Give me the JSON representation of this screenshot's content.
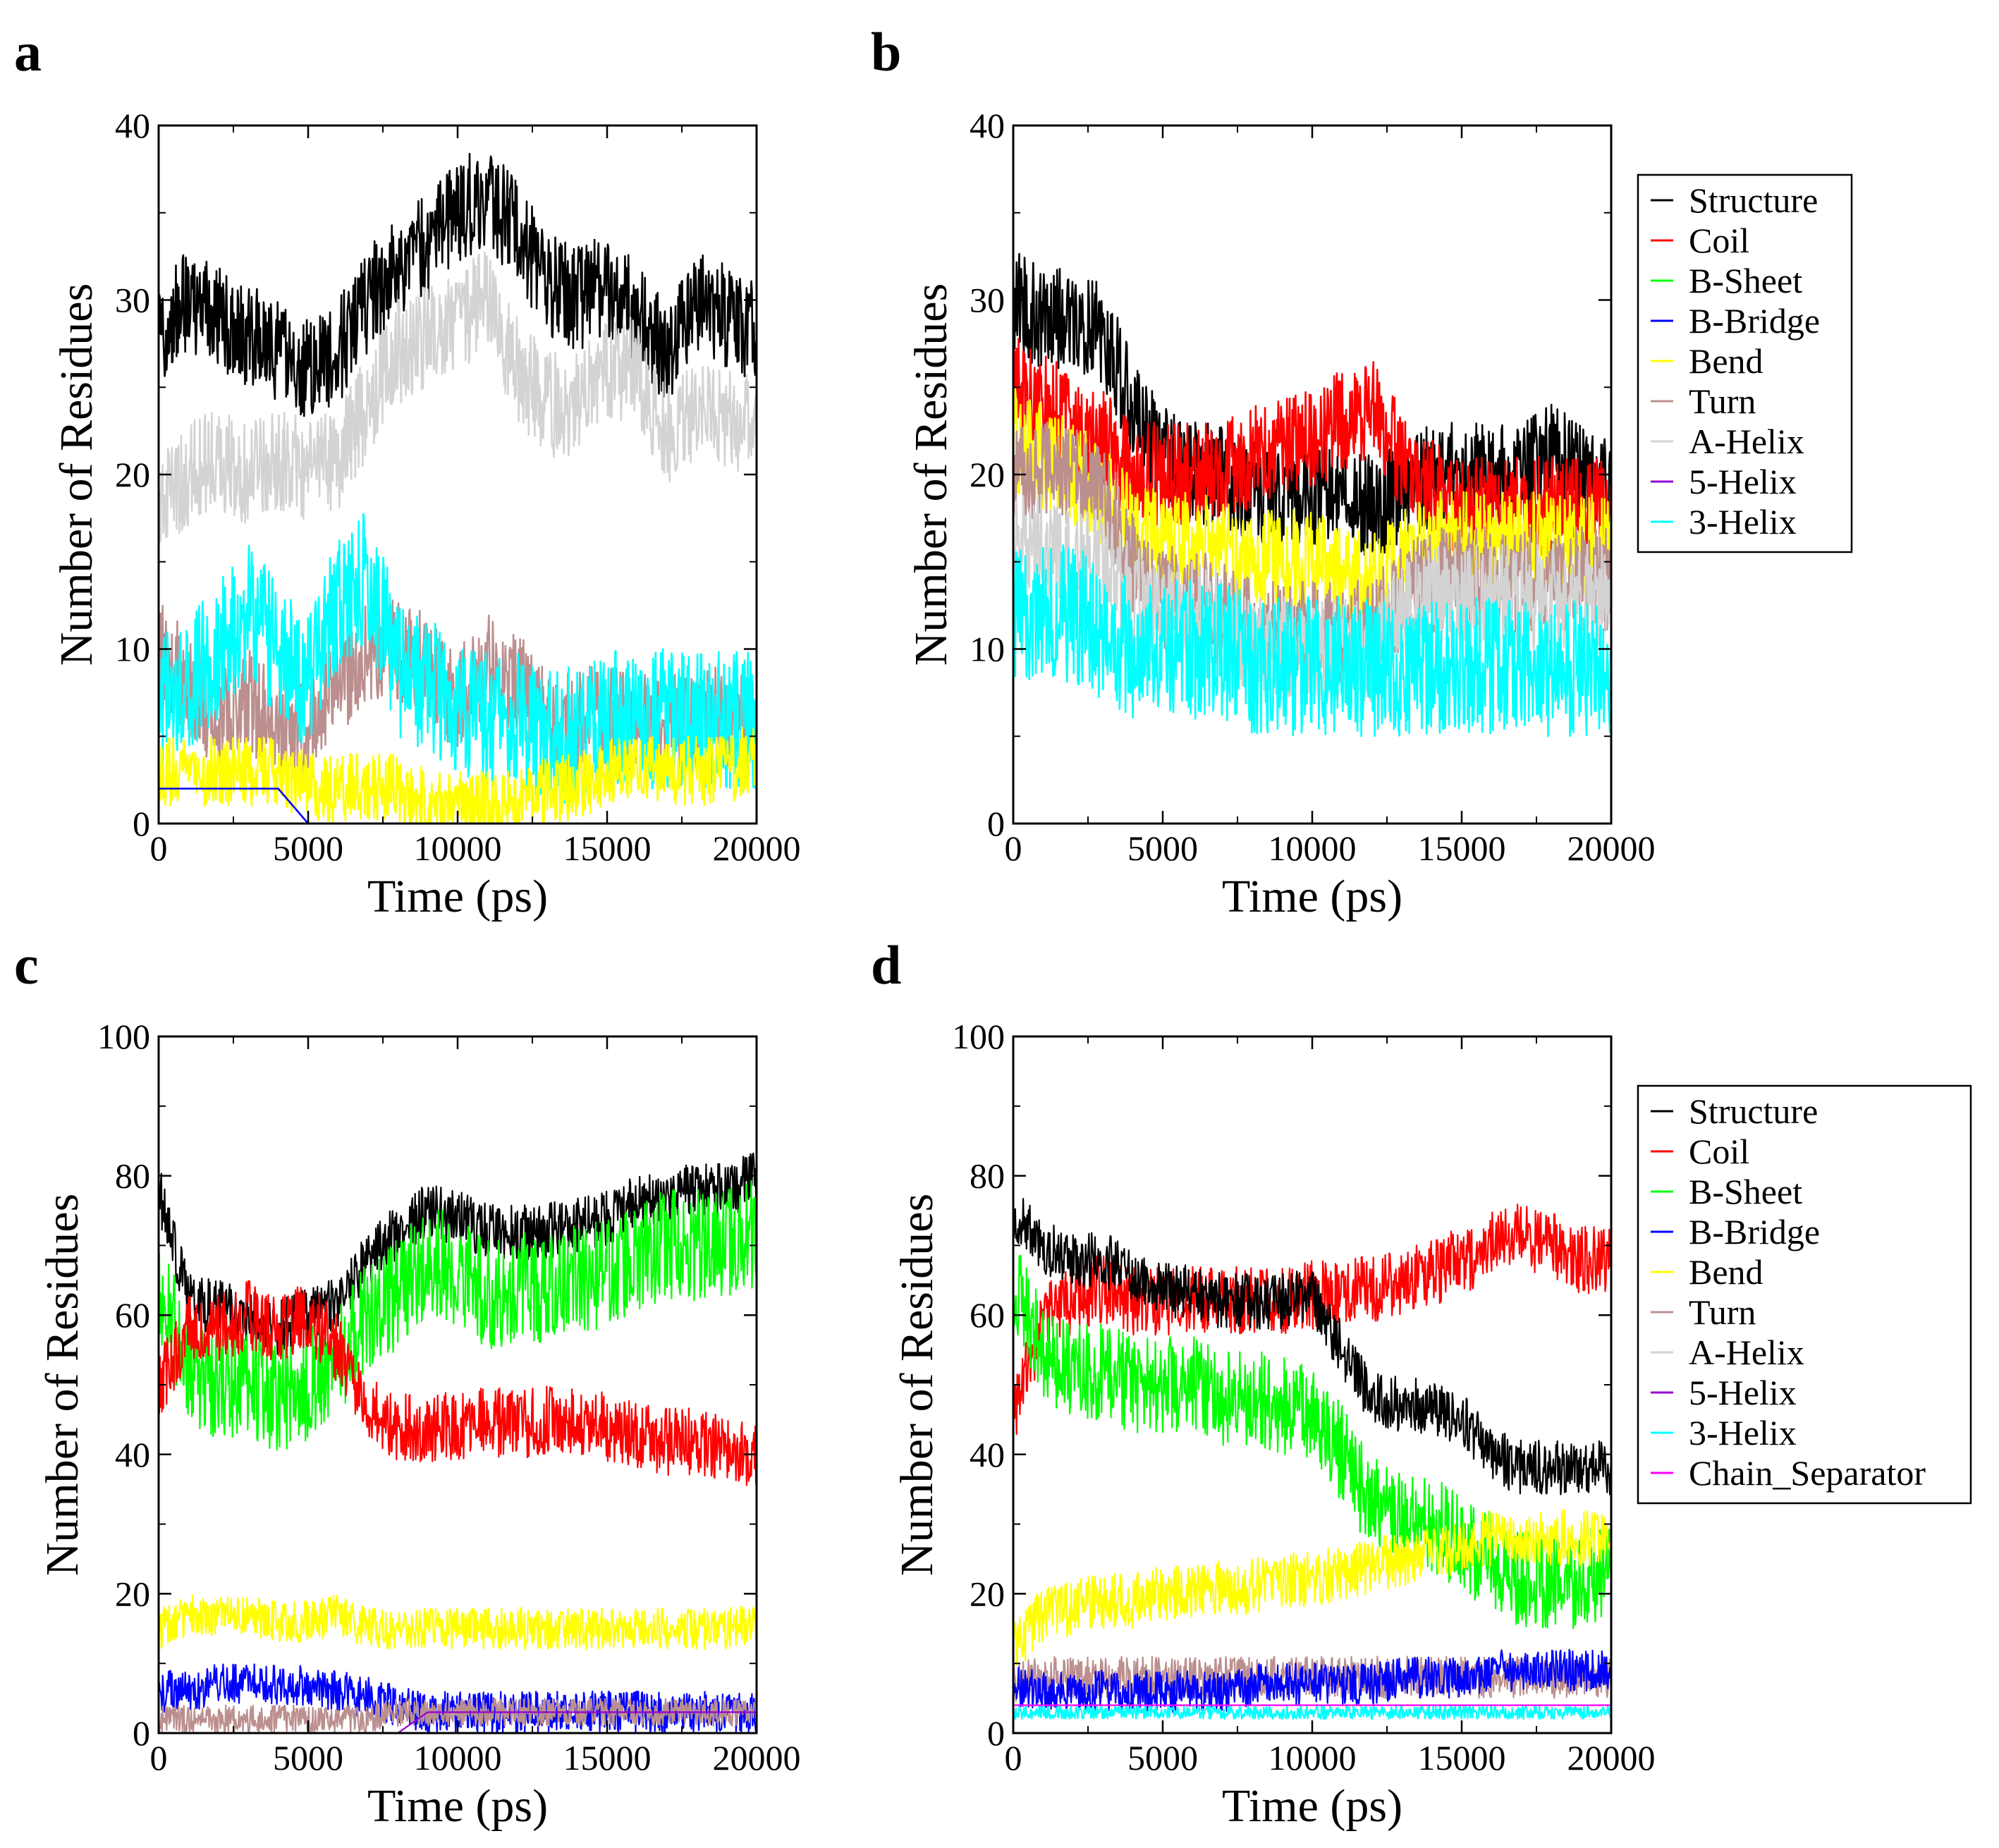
{
  "figure": {
    "panels": [
      {
        "letter": "a"
      },
      {
        "letter": "b"
      },
      {
        "letter": "c"
      },
      {
        "letter": "d"
      }
    ]
  },
  "chart_data": [
    {
      "type": "area",
      "panel": "a",
      "xlabel": "Time (ps)",
      "ylabel": "Number of Residues",
      "xlim": [
        0,
        20000
      ],
      "ylim": [
        0,
        40
      ],
      "xticks": [
        0,
        5000,
        10000,
        15000,
        20000
      ],
      "yticks": [
        0,
        10,
        20,
        30,
        40
      ],
      "x": [
        0,
        1000,
        2000,
        3000,
        4000,
        5000,
        6000,
        7000,
        8000,
        9000,
        10000,
        11000,
        12000,
        13000,
        14000,
        15000,
        16000,
        17000,
        18000,
        19000,
        20000
      ],
      "series": [
        {
          "name": "Structure",
          "color": "#000000",
          "values": [
            28,
            30,
            29,
            28,
            27,
            26,
            27,
            30,
            32,
            33,
            35,
            36,
            34,
            31,
            30,
            31,
            29,
            27,
            30,
            29,
            28
          ],
          "noise": 3
        },
        {
          "name": "A-Helix",
          "color": "#d3d3d3",
          "values": [
            18,
            20,
            21,
            20,
            21,
            20,
            21,
            24,
            27,
            28,
            29,
            30,
            26,
            24,
            24,
            26,
            26,
            22,
            24,
            23,
            23
          ],
          "noise": 3
        },
        {
          "name": "Turn",
          "color": "#bc8f8f",
          "values": [
            10,
            8,
            6,
            7,
            6,
            5,
            8,
            10,
            10,
            9,
            7,
            9,
            8,
            6,
            6,
            6,
            6,
            6,
            6,
            6,
            6
          ],
          "noise": 3
        },
        {
          "name": "3-Helix",
          "color": "#00ffff",
          "values": [
            7,
            8,
            10,
            12,
            10,
            8,
            13,
            14,
            9,
            8,
            7,
            6,
            6,
            5,
            5,
            6,
            6,
            6,
            6,
            6,
            6
          ],
          "noise": 4
        },
        {
          "name": "Bend",
          "color": "#ffff00",
          "values": [
            3,
            3,
            3,
            3,
            3,
            2,
            2,
            2,
            2,
            1,
            1,
            1,
            1,
            2,
            2,
            3,
            3,
            3,
            3,
            3,
            4
          ],
          "noise": 2
        },
        {
          "name": "B-Bridge",
          "color": "#0000ff",
          "values": [
            2,
            2,
            2,
            2,
            2,
            0,
            0,
            0,
            0,
            0,
            0,
            0,
            0,
            0,
            0,
            0,
            0,
            0,
            0,
            0,
            0
          ],
          "noise": 0
        }
      ]
    },
    {
      "type": "area",
      "panel": "b",
      "xlabel": "Time (ps)",
      "ylabel": "Number of Residues",
      "xlim": [
        0,
        20000
      ],
      "ylim": [
        0,
        40
      ],
      "xticks": [
        0,
        5000,
        10000,
        15000,
        20000
      ],
      "yticks": [
        0,
        10,
        20,
        30,
        40
      ],
      "x": [
        0,
        1000,
        2000,
        3000,
        4000,
        5000,
        6000,
        7000,
        8000,
        9000,
        10000,
        11000,
        12000,
        13000,
        14000,
        15000,
        16000,
        17000,
        18000,
        19000,
        20000
      ],
      "series": [
        {
          "name": "Structure",
          "color": "#000000",
          "values": [
            30,
            29,
            29,
            28,
            24,
            21,
            20,
            20,
            19,
            19,
            19,
            19,
            18,
            19,
            20,
            20,
            20,
            20,
            21,
            20,
            19
          ],
          "noise": 3
        },
        {
          "name": "Coil",
          "color": "#ff0000",
          "values": [
            25,
            24,
            23,
            22,
            20,
            20,
            20,
            20,
            21,
            22,
            22,
            23,
            24,
            21,
            19,
            18,
            18,
            18,
            18,
            18,
            18
          ],
          "noise": 3
        },
        {
          "name": "Bend",
          "color": "#ffff00",
          "values": [
            22,
            21,
            20,
            19,
            17,
            16,
            16,
            16,
            15,
            15,
            15,
            14,
            14,
            15,
            16,
            16,
            16,
            16,
            16,
            16,
            16
          ],
          "noise": 3
        },
        {
          "name": "Turn",
          "color": "#bc8f8f",
          "values": [
            20,
            20,
            20,
            19,
            15,
            13,
            13,
            12,
            11,
            11,
            11,
            11,
            11,
            13,
            14,
            14,
            14,
            14,
            14,
            14,
            14
          ],
          "noise": 3
        },
        {
          "name": "A-Helix",
          "color": "#d3d3d3",
          "values": [
            16,
            16,
            15,
            15,
            13,
            12,
            12,
            12,
            10,
            10,
            10,
            10,
            10,
            12,
            13,
            13,
            13,
            13,
            13,
            13,
            13
          ],
          "noise": 3
        },
        {
          "name": "3-Helix",
          "color": "#00ffff",
          "values": [
            12,
            12,
            12,
            11,
            10,
            10,
            10,
            10,
            9,
            9,
            9,
            9,
            9,
            9,
            9,
            9,
            9,
            9,
            9,
            9,
            9
          ],
          "noise": 4
        }
      ],
      "legend": [
        "Structure",
        "Coil",
        "B-Sheet",
        "B-Bridge",
        "Bend",
        "Turn",
        "A-Helix",
        "5-Helix",
        "3-Helix"
      ],
      "legend_colors": [
        "#000000",
        "#ff0000",
        "#00ff00",
        "#0000ff",
        "#ffff00",
        "#bc8f8f",
        "#d3d3d3",
        "#9400d3",
        "#00ffff"
      ],
      "legend_position": "right"
    },
    {
      "type": "line",
      "panel": "c",
      "xlabel": "Time (ps)",
      "ylabel": "Number of Residues",
      "xlim": [
        0,
        20000
      ],
      "ylim": [
        0,
        100
      ],
      "xticks": [
        0,
        5000,
        10000,
        15000,
        20000
      ],
      "yticks": [
        0,
        20,
        40,
        60,
        80,
        100
      ],
      "x": [
        0,
        1000,
        2000,
        3000,
        4000,
        5000,
        6000,
        7000,
        8000,
        9000,
        10000,
        11000,
        12000,
        13000,
        14000,
        15000,
        16000,
        17000,
        18000,
        19000,
        20000
      ],
      "series": [
        {
          "name": "Structure",
          "color": "#000000",
          "values": [
            78,
            62,
            61,
            60,
            58,
            60,
            62,
            68,
            72,
            75,
            74,
            72,
            72,
            72,
            73,
            74,
            76,
            77,
            78,
            78,
            80
          ],
          "noise": 4
        },
        {
          "name": "B-Sheet",
          "color": "#00ff00",
          "values": [
            65,
            52,
            50,
            50,
            48,
            50,
            53,
            60,
            63,
            68,
            66,
            63,
            64,
            64,
            65,
            66,
            68,
            70,
            70,
            70,
            72
          ],
          "noise": 8
        },
        {
          "name": "Coil",
          "color": "#ff0000",
          "values": [
            50,
            58,
            58,
            60,
            58,
            60,
            55,
            46,
            44,
            44,
            44,
            45,
            44,
            45,
            45,
            44,
            43,
            42,
            42,
            41,
            40
          ],
          "noise": 5
        },
        {
          "name": "Bend",
          "color": "#ffff00",
          "values": [
            15,
            17,
            17,
            17,
            16,
            16,
            17,
            15,
            15,
            15,
            15,
            15,
            15,
            15,
            15,
            15,
            15,
            15,
            15,
            15,
            16
          ],
          "noise": 3
        },
        {
          "name": "B-Bridge",
          "color": "#0000ff",
          "values": [
            6,
            6,
            7,
            7,
            7,
            7,
            6,
            5,
            4,
            3,
            3,
            3,
            3,
            3,
            3,
            3,
            3,
            3,
            3,
            3,
            3
          ],
          "noise": 3
        },
        {
          "name": "Turn",
          "color": "#bc8f8f",
          "values": [
            2,
            2,
            2,
            2,
            2,
            2,
            2,
            2,
            3,
            3,
            3,
            3,
            3,
            3,
            3,
            3,
            3,
            3,
            3,
            3,
            3
          ],
          "noise": 2
        },
        {
          "name": "5-Helix",
          "color": "#9400d3",
          "values": [
            0,
            0,
            0,
            0,
            0,
            0,
            0,
            0,
            0,
            3,
            3,
            3,
            3,
            3,
            3,
            3,
            3,
            3,
            3,
            3,
            3
          ],
          "noise": 0
        }
      ]
    },
    {
      "type": "line",
      "panel": "d",
      "xlabel": "Time (ps)",
      "ylabel": "Number of Residues",
      "xlim": [
        0,
        20000
      ],
      "ylim": [
        0,
        100
      ],
      "xticks": [
        0,
        5000,
        10000,
        15000,
        20000
      ],
      "yticks": [
        0,
        20,
        40,
        60,
        80,
        100
      ],
      "x": [
        0,
        1000,
        2000,
        3000,
        4000,
        5000,
        6000,
        7000,
        8000,
        9000,
        10000,
        11000,
        12000,
        13000,
        14000,
        15000,
        16000,
        17000,
        18000,
        19000,
        20000
      ],
      "series": [
        {
          "name": "Coil",
          "color": "#ff0000",
          "values": [
            45,
            60,
            62,
            64,
            62,
            62,
            62,
            62,
            62,
            62,
            63,
            63,
            64,
            65,
            66,
            68,
            70,
            72,
            70,
            68,
            68
          ],
          "noise": 5
        },
        {
          "name": "Structure",
          "color": "#000000",
          "values": [
            75,
            70,
            68,
            68,
            66,
            64,
            63,
            62,
            62,
            62,
            63,
            55,
            48,
            47,
            47,
            45,
            40,
            38,
            38,
            38,
            38
          ],
          "noise": 4
        },
        {
          "name": "B-Sheet",
          "color": "#00ff00",
          "values": [
            65,
            55,
            52,
            52,
            50,
            50,
            50,
            48,
            48,
            47,
            46,
            40,
            33,
            30,
            30,
            27,
            25,
            22,
            22,
            22,
            24
          ],
          "noise": 7
        },
        {
          "name": "Bend",
          "color": "#ffff00",
          "values": [
            12,
            17,
            18,
            19,
            19,
            20,
            20,
            21,
            21,
            22,
            22,
            23,
            24,
            25,
            26,
            27,
            28,
            28,
            28,
            28,
            28
          ],
          "noise": 4
        },
        {
          "name": "Turn",
          "color": "#bc8f8f",
          "values": [
            7,
            8,
            8,
            8,
            8,
            8,
            8,
            8,
            8,
            8,
            8,
            8,
            8,
            8,
            8,
            8,
            8,
            8,
            8,
            8,
            8
          ],
          "noise": 3
        },
        {
          "name": "B-Bridge",
          "color": "#0000ff",
          "values": [
            7,
            6,
            6,
            6,
            6,
            6,
            6,
            6,
            7,
            7,
            7,
            7,
            7,
            8,
            8,
            8,
            9,
            9,
            9,
            9,
            9
          ],
          "noise": 3
        },
        {
          "name": "3-Helix",
          "color": "#00ffff",
          "values": [
            3,
            3,
            3,
            3,
            3,
            3,
            3,
            3,
            3,
            3,
            3,
            3,
            3,
            3,
            3,
            3,
            3,
            3,
            3,
            3,
            3
          ],
          "noise": 1
        },
        {
          "name": "Chain_Separator",
          "color": "#ff00ff",
          "values": [
            4,
            4,
            4,
            4,
            4,
            4,
            4,
            4,
            4,
            4,
            4,
            4,
            4,
            4,
            4,
            4,
            4,
            4,
            4,
            4,
            4
          ],
          "noise": 0
        }
      ],
      "legend": [
        "Structure",
        "Coil",
        "B-Sheet",
        "B-Bridge",
        "Bend",
        "Turn",
        "A-Helix",
        "5-Helix",
        "3-Helix",
        "Chain_Separator"
      ],
      "legend_colors": [
        "#000000",
        "#ff0000",
        "#00ff00",
        "#0000ff",
        "#ffff00",
        "#bc8f8f",
        "#d3d3d3",
        "#9400d3",
        "#00ffff",
        "#ff00ff"
      ],
      "legend_position": "right"
    }
  ]
}
